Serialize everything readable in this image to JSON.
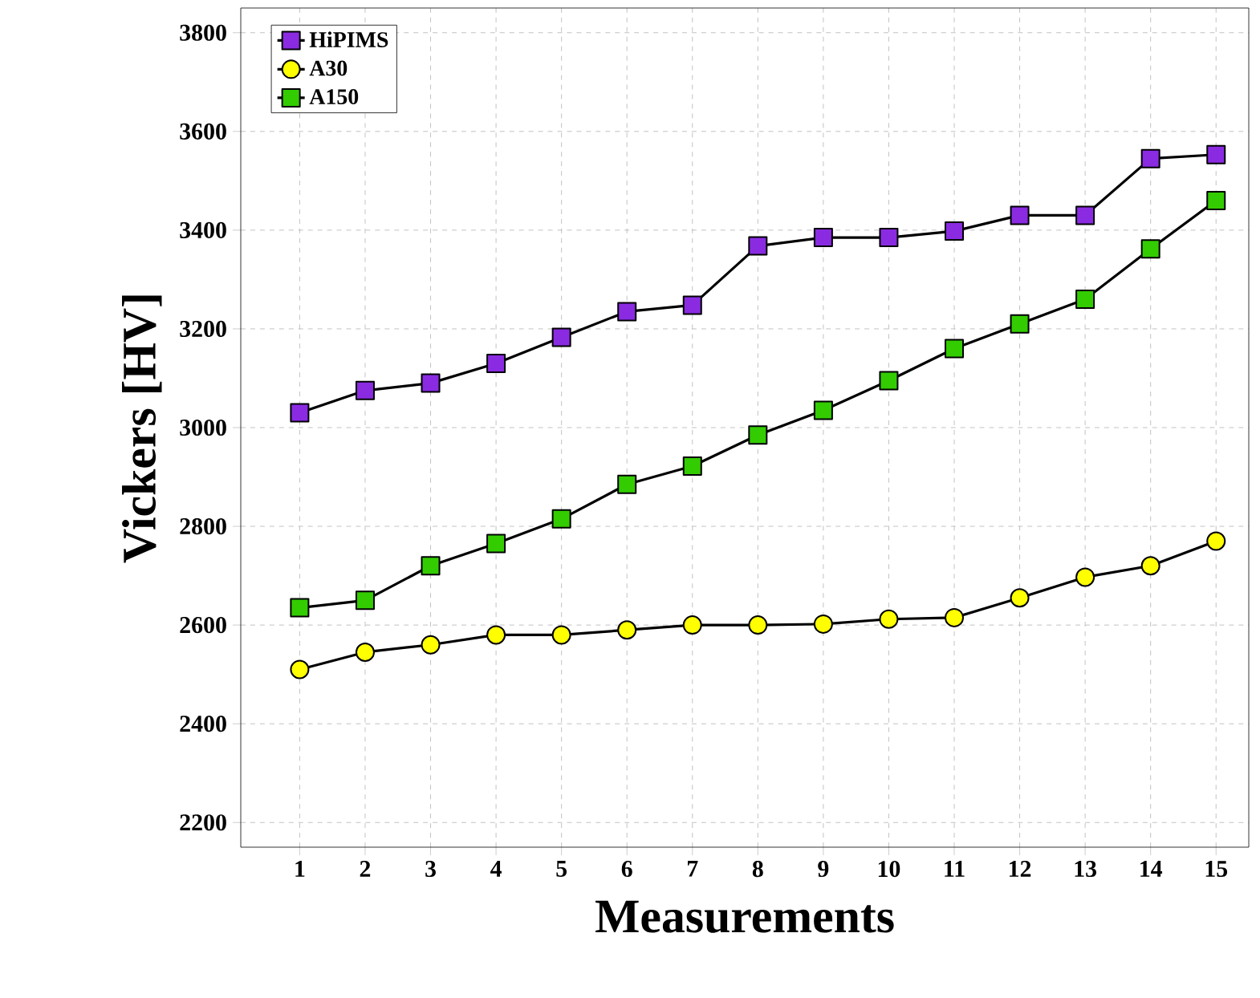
{
  "chart_data": {
    "type": "line",
    "xlabel": "Measurements",
    "ylabel": "Vickers [HV]",
    "x": [
      1,
      2,
      3,
      4,
      5,
      6,
      7,
      8,
      9,
      10,
      11,
      12,
      13,
      14,
      15
    ],
    "series": [
      {
        "name": "HiPIMS",
        "color": "#8a2be2",
        "marker": "square",
        "values": [
          3030,
          3075,
          3090,
          3130,
          3183,
          3235,
          3248,
          3368,
          3385,
          3385,
          3398,
          3430,
          3430,
          3545,
          3553
        ]
      },
      {
        "name": "A30",
        "color": "#ffff00",
        "marker": "circle",
        "values": [
          2510,
          2545,
          2560,
          2580,
          2580,
          2590,
          2600,
          2600,
          2602,
          2612,
          2615,
          2655,
          2697,
          2720,
          2770
        ]
      },
      {
        "name": "A150",
        "color": "#33cc00",
        "marker": "square",
        "values": [
          2635,
          2650,
          2720,
          2765,
          2815,
          2885,
          2922,
          2985,
          3035,
          3095,
          3160,
          3210,
          3260,
          3362,
          3460
        ]
      }
    ],
    "xlim": [
      0.1,
      15.5
    ],
    "ylim": [
      2150,
      3850
    ],
    "xticks": [
      1,
      2,
      3,
      4,
      5,
      6,
      7,
      8,
      9,
      10,
      11,
      12,
      13,
      14,
      15
    ],
    "yticks": [
      2200,
      2400,
      2600,
      2800,
      3000,
      3200,
      3400,
      3600,
      3800
    ],
    "grid": true,
    "legend": "top left",
    "line_style": "solid"
  }
}
